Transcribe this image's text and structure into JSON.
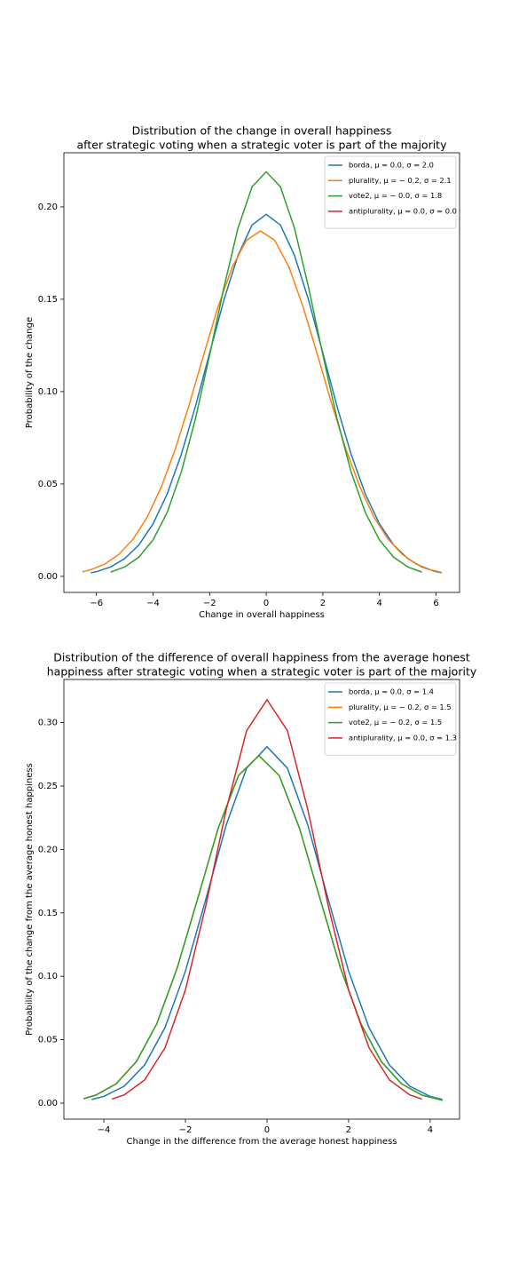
{
  "chart_data": [
    {
      "type": "line",
      "title": [
        "Distribution of the change in overall happiness",
        "after strategic voting when a strategic voter is part of the majority"
      ],
      "xlabel": "Change in overall happiness",
      "ylabel": "Probability of the change",
      "xlim": [
        -7.15,
        6.83
      ],
      "ylim": [
        -0.0087,
        0.2293
      ],
      "xticks": [
        {
          "value": -6,
          "label": "−6"
        },
        {
          "value": -4,
          "label": "−4"
        },
        {
          "value": -2,
          "label": "−2"
        },
        0,
        2,
        4,
        6
      ],
      "yticks": [
        {
          "value": 0,
          "label": "0.00"
        },
        {
          "value": 0.05,
          "label": "0.05"
        },
        {
          "value": 0.1,
          "label": "0.10"
        },
        {
          "value": 0.15,
          "label": "0.15"
        },
        {
          "value": 0.2,
          "label": "0.20"
        }
      ],
      "legend": "upper right",
      "series": [
        {
          "name": "borda, μ = 0.0, σ = 2.0",
          "color": "#1f77b4",
          "x": [
            -6.2,
            -6,
            -5.5,
            -5,
            -4.5,
            -4,
            -3.5,
            -3,
            -2.5,
            -2,
            -1.5,
            -1,
            -0.5,
            0,
            0.5,
            1,
            1.5,
            2,
            2.5,
            3,
            3.5,
            4,
            4.5,
            5,
            5.5,
            6,
            6.2
          ],
          "values": [
            0.0019,
            0.0025,
            0.0051,
            0.0096,
            0.017,
            0.0284,
            0.0446,
            0.0661,
            0.0921,
            0.1209,
            0.1494,
            0.1737,
            0.1902,
            0.196,
            0.1902,
            0.1737,
            0.1494,
            0.1209,
            0.0921,
            0.0661,
            0.0446,
            0.0284,
            0.017,
            0.0096,
            0.0051,
            0.0025,
            0.0019
          ]
        },
        {
          "name": "plurality, μ = − 0.2, σ = 2.1",
          "color": "#ff7f0e",
          "x": [
            -6.5,
            -6.2,
            -5.7,
            -5.2,
            -4.7,
            -4.2,
            -3.7,
            -3.2,
            -2.7,
            -2.2,
            -1.7,
            -1.2,
            -0.7,
            -0.2,
            0.3,
            0.8,
            1.3,
            1.8,
            2.3,
            2.8,
            3.3,
            3.8,
            4.3,
            4.8,
            5.3,
            5.8,
            6.2
          ],
          "values": [
            0.0024,
            0.0036,
            0.0067,
            0.012,
            0.0202,
            0.0322,
            0.0487,
            0.0695,
            0.0941,
            0.1205,
            0.146,
            0.1675,
            0.1819,
            0.187,
            0.1819,
            0.1675,
            0.146,
            0.1205,
            0.0941,
            0.0695,
            0.0487,
            0.0322,
            0.0202,
            0.012,
            0.0067,
            0.0036,
            0.0021
          ]
        },
        {
          "name": "vote2, μ =  − 0.0, σ = 1.8",
          "color": "#2ca02c",
          "x": [
            -5.5,
            -5,
            -4.5,
            -4,
            -3.5,
            -3,
            -2.5,
            -2,
            -1.5,
            -1,
            -0.5,
            0,
            0.5,
            1,
            1.5,
            2,
            2.5,
            3,
            3.5,
            4,
            4.5,
            5,
            5.5
          ],
          "values": [
            0.0023,
            0.0051,
            0.0104,
            0.0197,
            0.0346,
            0.0565,
            0.0854,
            0.1199,
            0.1561,
            0.1884,
            0.2109,
            0.219,
            0.2109,
            0.1884,
            0.1561,
            0.1199,
            0.0854,
            0.0565,
            0.0346,
            0.0197,
            0.0104,
            0.0051,
            0.0023
          ]
        },
        {
          "name": "antiplurality, μ = 0.0, σ = 0.0",
          "color": "#d62728",
          "x": [],
          "values": []
        }
      ]
    },
    {
      "type": "line",
      "title": [
        "Distribution of the difference of overall happiness from the average honest",
        "happiness after strategic voting when a strategic voter is part of the majority"
      ],
      "xlabel": "Change in the difference from the average honest happiness",
      "ylabel": "Probability of the change from the average honest happiness",
      "xlim": [
        -4.98,
        4.72
      ],
      "ylim": [
        -0.0126,
        0.334
      ],
      "xticks": [
        {
          "value": -4,
          "label": "−4"
        },
        {
          "value": -2,
          "label": "−2"
        },
        0,
        2,
        4
      ],
      "yticks": [
        {
          "value": 0,
          "label": "0.00"
        },
        {
          "value": 0.05,
          "label": "0.05"
        },
        {
          "value": 0.1,
          "label": "0.10"
        },
        {
          "value": 0.15,
          "label": "0.15"
        },
        {
          "value": 0.2,
          "label": "0.20"
        },
        {
          "value": 0.25,
          "label": "0.25"
        },
        {
          "value": 0.3,
          "label": "0.30"
        }
      ],
      "legend": "upper right",
      "series": [
        {
          "name": "borda, μ = 0.0, σ = 1.4",
          "color": "#1f77b4",
          "x": [
            -4.3,
            -4,
            -3.5,
            -3,
            -2.5,
            -2,
            -1.5,
            -1,
            -0.5,
            0,
            0.5,
            1,
            1.5,
            2,
            2.5,
            3,
            3.5,
            4,
            4.3
          ],
          "values": [
            0.0029,
            0.0053,
            0.0134,
            0.0301,
            0.0596,
            0.1041,
            0.1608,
            0.2193,
            0.2641,
            0.281,
            0.2641,
            0.2193,
            0.1608,
            0.1041,
            0.0596,
            0.0301,
            0.0134,
            0.0053,
            0.0029
          ]
        },
        {
          "name": "plurality, μ = − 0.2, σ = 1.5",
          "color": "#ff7f0e",
          "x": [
            -4.5,
            -4.2,
            -3.7,
            -3.2,
            -2.7,
            -2.2,
            -1.7,
            -1.2,
            -0.7,
            -0.2,
            0.3,
            0.8,
            1.3,
            1.8,
            2.3,
            2.8,
            3.3,
            3.8,
            4.3
          ],
          "values": [
            0.0035,
            0.0063,
            0.0152,
            0.0328,
            0.0627,
            0.1067,
            0.1612,
            0.2164,
            0.2583,
            0.274,
            0.2583,
            0.2164,
            0.1612,
            0.1067,
            0.0627,
            0.0328,
            0.0152,
            0.0063,
            0.0023
          ]
        },
        {
          "name": "vote2, μ = − 0.2, σ = 1.5",
          "color": "#2ca02c",
          "x": [
            -4.5,
            -4.2,
            -3.7,
            -3.2,
            -2.7,
            -2.2,
            -1.7,
            -1.2,
            -0.7,
            -0.2,
            0.3,
            0.8,
            1.3,
            1.8,
            2.3,
            2.8,
            3.3,
            3.8,
            4.3
          ],
          "values": [
            0.0035,
            0.0063,
            0.0152,
            0.0328,
            0.0627,
            0.1067,
            0.1612,
            0.2164,
            0.2583,
            0.274,
            0.2583,
            0.2164,
            0.1612,
            0.1067,
            0.0627,
            0.0328,
            0.0152,
            0.0063,
            0.0023
          ]
        },
        {
          "name": "antiplurality, μ = 0.0, σ = 1.3",
          "color": "#d62728",
          "x": [
            -3.8,
            -3.5,
            -3,
            -2.5,
            -2,
            -1.5,
            -1,
            -0.5,
            0,
            0.5,
            1,
            1.5,
            2,
            2.5,
            3,
            3.5,
            3.8
          ],
          "values": [
            0.0032,
            0.0065,
            0.0183,
            0.0437,
            0.0893,
            0.1557,
            0.2315,
            0.2937,
            0.318,
            0.2937,
            0.2315,
            0.1557,
            0.0893,
            0.0437,
            0.0183,
            0.0065,
            0.0032
          ]
        }
      ]
    }
  ]
}
